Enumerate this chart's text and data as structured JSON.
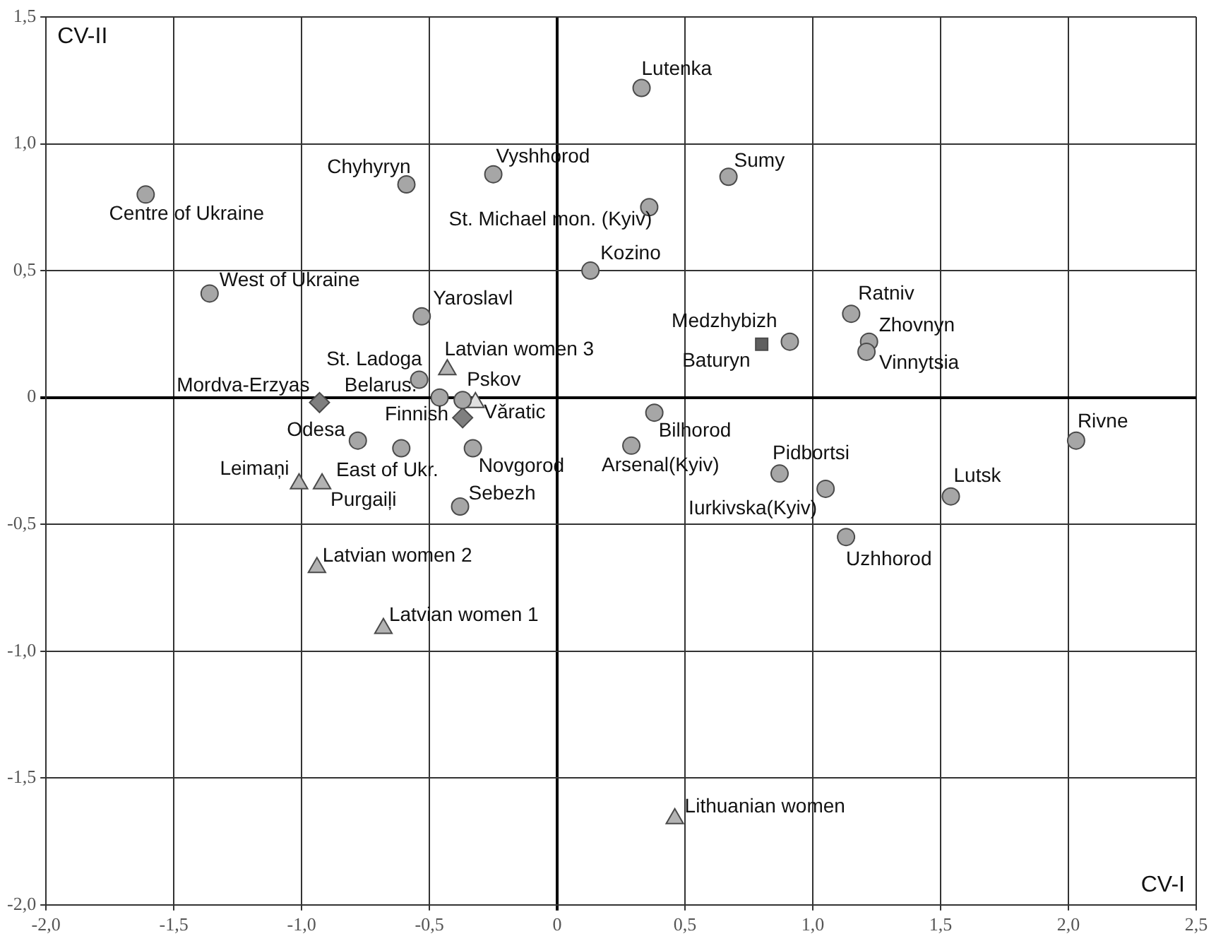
{
  "chart_data": {
    "type": "scatter",
    "xlabel": "CV-I",
    "ylabel": "CV-II",
    "xlim": [
      -2.0,
      2.5
    ],
    "ylim": [
      -2.0,
      1.5
    ],
    "xticks": [
      {
        "value": -2,
        "label": "-2,0"
      },
      {
        "value": -1.5,
        "label": "-1,5"
      },
      {
        "value": -1,
        "label": "-1,0"
      },
      {
        "value": -0.5,
        "label": "-0,5"
      },
      {
        "value": 0,
        "label": "0"
      },
      {
        "value": 0.5,
        "label": "0,5"
      },
      {
        "value": 1,
        "label": "1,0"
      },
      {
        "value": 1.5,
        "label": "1,5"
      },
      {
        "value": 2,
        "label": "2,0"
      },
      {
        "value": 2.5,
        "label": "2,5"
      }
    ],
    "yticks": [
      {
        "value": -2,
        "label": "-2,0"
      },
      {
        "value": -1.5,
        "label": "-1,5"
      },
      {
        "value": -1,
        "label": "-1,0"
      },
      {
        "value": -0.5,
        "label": "-0,5"
      },
      {
        "value": 0,
        "label": "0"
      },
      {
        "value": 0.5,
        "label": "0,5"
      },
      {
        "value": 1,
        "label": "1,0"
      },
      {
        "value": 1.5,
        "label": "1,5"
      }
    ],
    "grid": true,
    "legend": false,
    "series": [
      {
        "marker": "circle",
        "color": "#a6a6a6",
        "x": [
          -1.61,
          -1.36,
          -0.59,
          -0.25,
          0.33,
          0.67,
          0.36,
          0.13,
          -0.53,
          1.15,
          1.22,
          1.21,
          0.91,
          2.03,
          1.54,
          1.13,
          0.87,
          1.05,
          0.38,
          0.29,
          -0.54,
          -0.46,
          -0.37,
          -0.78,
          -0.61,
          -0.33,
          -0.38
        ],
        "values": [
          0.8,
          0.41,
          0.84,
          0.88,
          1.22,
          0.87,
          0.75,
          0.5,
          0.32,
          0.33,
          0.22,
          0.18,
          0.22,
          -0.17,
          -0.39,
          -0.55,
          -0.3,
          -0.36,
          -0.06,
          -0.19,
          0.07,
          0.0,
          -0.01,
          -0.17,
          -0.2,
          -0.2,
          -0.43
        ]
      },
      {
        "marker": "square",
        "color": "#5f5f5f",
        "x": [
          0.8
        ],
        "values": [
          0.21
        ]
      },
      {
        "marker": "triangle",
        "color": "#b3b3b3",
        "x": [
          -0.43,
          -1.01,
          -0.92,
          -0.94,
          -0.68,
          0.46
        ],
        "values": [
          0.11,
          -0.34,
          -0.34,
          -0.67,
          -0.91,
          -1.66
        ]
      },
      {
        "marker": "diamond",
        "color": "#7f7f7f",
        "x": [
          -0.37,
          -0.93
        ],
        "values": [
          -0.08,
          -0.02
        ]
      },
      {
        "marker": "triangle",
        "color": "#e0e0e0",
        "x": [
          -0.32
        ],
        "values": [
          -0.02
        ]
      }
    ],
    "annotations": [
      {
        "text": "Centre of Ukraine",
        "x": -1.61,
        "y": 0.8
      },
      {
        "text": "West of Ukraine",
        "x": -1.36,
        "y": 0.41
      },
      {
        "text": "Chyhyryn",
        "x": -0.59,
        "y": 0.84
      },
      {
        "text": "Vyshhorod",
        "x": -0.25,
        "y": 0.88
      },
      {
        "text": "Lutenka",
        "x": 0.33,
        "y": 1.22
      },
      {
        "text": "Sumy",
        "x": 0.67,
        "y": 0.87
      },
      {
        "text": "St. Michael mon. (Kyiv)",
        "x": 0.36,
        "y": 0.75
      },
      {
        "text": "Kozino",
        "x": 0.13,
        "y": 0.5
      },
      {
        "text": "Yaroslavl",
        "x": -0.53,
        "y": 0.32
      },
      {
        "text": "Ratniv",
        "x": 1.15,
        "y": 0.33
      },
      {
        "text": "Zhovnyn",
        "x": 1.22,
        "y": 0.22
      },
      {
        "text": "Vinnytsia",
        "x": 1.21,
        "y": 0.18
      },
      {
        "text": "Medzhybizh",
        "x": 0.91,
        "y": 0.22
      },
      {
        "text": "Baturyn",
        "x": 0.8,
        "y": 0.21
      },
      {
        "text": "Rivne",
        "x": 2.03,
        "y": -0.17
      },
      {
        "text": "Lutsk",
        "x": 1.54,
        "y": -0.39
      },
      {
        "text": "Uzhhorod",
        "x": 1.13,
        "y": -0.55
      },
      {
        "text": "Pidbortsi",
        "x": 0.87,
        "y": -0.3
      },
      {
        "text": "Iurkivska(Kyiv)",
        "x": 1.05,
        "y": -0.36
      },
      {
        "text": "Bilhorod",
        "x": 0.38,
        "y": -0.06
      },
      {
        "text": "Arsenal(Kyiv)",
        "x": 0.29,
        "y": -0.19
      },
      {
        "text": "St. Ladoga",
        "x": -0.54,
        "y": 0.07
      },
      {
        "text": "Latvian women 3",
        "x": -0.43,
        "y": 0.11
      },
      {
        "text": "Belarus.",
        "x": -0.46,
        "y": 0.0
      },
      {
        "text": "Pskov",
        "x": -0.37,
        "y": -0.01
      },
      {
        "text": "Vǎratic",
        "x": -0.32,
        "y": -0.02
      },
      {
        "text": "Finnish",
        "x": -0.37,
        "y": -0.08
      },
      {
        "text": "Mordva-Erzyas",
        "x": -0.93,
        "y": -0.02
      },
      {
        "text": "Odesa",
        "x": -0.78,
        "y": -0.17
      },
      {
        "text": "East of Ukr.",
        "x": -0.61,
        "y": -0.2
      },
      {
        "text": "Novgorod",
        "x": -0.33,
        "y": -0.2
      },
      {
        "text": "Sebezh",
        "x": -0.38,
        "y": -0.43
      },
      {
        "text": "Leimaņi",
        "x": -1.01,
        "y": -0.34
      },
      {
        "text": "Purgaiļi",
        "x": -0.92,
        "y": -0.34
      },
      {
        "text": "Latvian women 2",
        "x": -0.94,
        "y": -0.67
      },
      {
        "text": "Latvian women 1",
        "x": -0.68,
        "y": -0.91
      },
      {
        "text": "Lithuanian women",
        "x": 0.46,
        "y": -1.66
      }
    ]
  }
}
